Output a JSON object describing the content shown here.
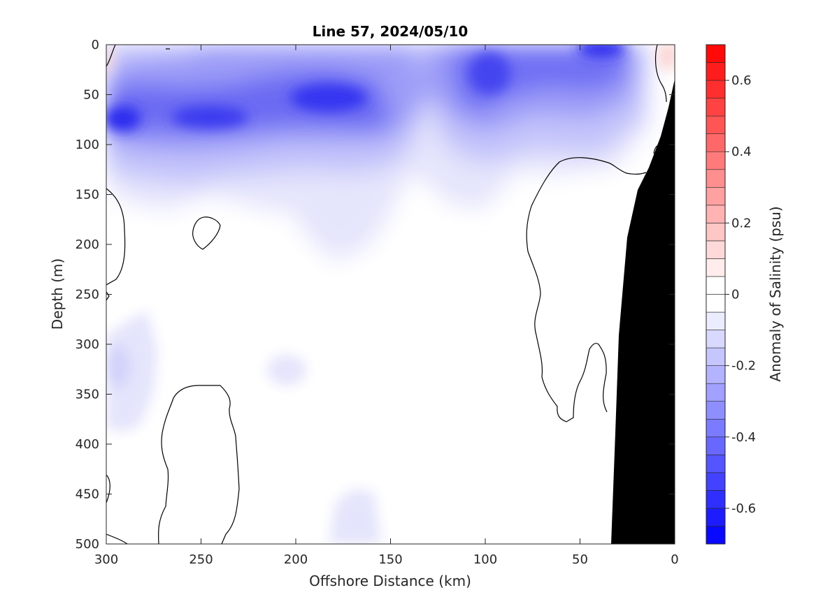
{
  "chart_data": {
    "type": "heatmap",
    "title": "Line 57, 2024/05/10",
    "xlabel": "Offshore Distance (km)",
    "ylabel": "Depth (m)",
    "colorbar_label": "Anomaly of Salinity (psu)",
    "x_reversed": true,
    "y_reversed": true,
    "xlim": [
      0,
      300
    ],
    "ylim": [
      0,
      500
    ],
    "x_ticks": [
      300,
      250,
      200,
      150,
      100,
      50,
      0
    ],
    "y_ticks": [
      0,
      50,
      100,
      150,
      200,
      250,
      300,
      350,
      400,
      450,
      500
    ],
    "colorbar_range": [
      -0.7,
      0.7
    ],
    "colorbar_step": 0.05,
    "colorbar_ticks": [
      0.6,
      0.4,
      0.2,
      0,
      -0.2,
      -0.4,
      -0.6
    ],
    "colorbar_tick_labels": [
      "0.6",
      "0.4",
      "0.2",
      "0",
      "-0.2",
      "-0.4",
      "-0.6"
    ],
    "zero_contour": "black line",
    "bathymetry_fill": "#000000",
    "colors": {
      "negative": "#0000ff",
      "positive": "#ff0000",
      "zero": "#ffffff"
    },
    "approx_field_features": [
      {
        "region": "fresh core",
        "x_km": 292,
        "depth_m": 75,
        "anomaly": -0.55
      },
      {
        "region": "fresh core",
        "x_km": 245,
        "depth_m": 75,
        "anomaly": -0.45
      },
      {
        "region": "fresh core",
        "x_km": 175,
        "depth_m": 55,
        "anomaly": -0.5
      },
      {
        "region": "fresh core",
        "x_km": 100,
        "depth_m": 30,
        "anomaly": -0.45
      },
      {
        "region": "surface fresh core",
        "x_km": 40,
        "depth_m": 5,
        "anomaly": -0.6
      },
      {
        "region": "weak fresh patch",
        "x_km": 290,
        "depth_m": 330,
        "anomaly": -0.15
      },
      {
        "region": "weak fresh patch",
        "x_km": 205,
        "depth_m": 320,
        "anomaly": -0.05
      },
      {
        "region": "weak fresh patch",
        "x_km": 170,
        "depth_m": 480,
        "anomaly": -0.05
      },
      {
        "region": "weak salty patch",
        "x_km": 5,
        "depth_m": 10,
        "anomaly": 0.05
      }
    ],
    "bathymetry_outline": [
      [
        35,
        500
      ],
      [
        27,
        200
      ],
      [
        20,
        148
      ],
      [
        10,
        100
      ],
      [
        0,
        30
      ]
    ]
  }
}
